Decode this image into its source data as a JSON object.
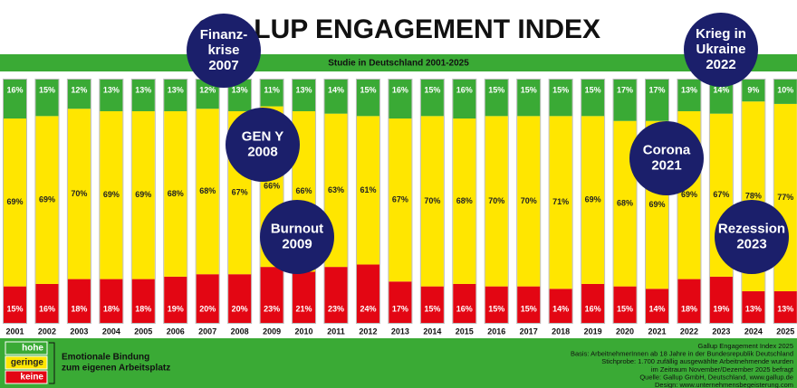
{
  "chart_data": {
    "type": "stacked_bar",
    "title": "GALLUP ENGAGEMENT INDEX",
    "subtitle": "Studie in Deutschland 2001-2025",
    "categories": [
      "2001",
      "2002",
      "2003",
      "2004",
      "2005",
      "2006",
      "2007",
      "2008",
      "2009",
      "2010",
      "2011",
      "2012",
      "2013",
      "2014",
      "2015",
      "2016",
      "2017",
      "2018",
      "2019",
      "2020",
      "2021",
      "2022",
      "2023",
      "2024",
      "2025"
    ],
    "ylim": [
      0,
      100
    ],
    "series": [
      {
        "name": "hohe",
        "color": "#3aaa35",
        "values": [
          16,
          15,
          12,
          13,
          13,
          13,
          12,
          13,
          11,
          13,
          14,
          15,
          16,
          15,
          16,
          15,
          15,
          15,
          15,
          17,
          17,
          13,
          14,
          9,
          10
        ],
        "value_labels": [
          "16%",
          "15%",
          "12%",
          "13%",
          "13%",
          "13%",
          "12%",
          "13%",
          "11%",
          "13%",
          "14%",
          "15%",
          "16%",
          "15%",
          "16%",
          "15%",
          "15%",
          "15%",
          "15%",
          "17%",
          "17%",
          "13%",
          "14%",
          "9%",
          "10%"
        ]
      },
      {
        "name": "geringe",
        "color": "#ffe600",
        "values": [
          69,
          69,
          70,
          69,
          69,
          68,
          68,
          67,
          66,
          66,
          63,
          61,
          67,
          70,
          68,
          70,
          70,
          71,
          69,
          68,
          69,
          69,
          67,
          78,
          77
        ],
        "value_labels": [
          "69%",
          "69%",
          "70%",
          "69%",
          "69%",
          "68%",
          "68%",
          "67%",
          "66%",
          "66%",
          "63%",
          "61%",
          "67%",
          "70%",
          "68%",
          "70%",
          "70%",
          "71%",
          "69%",
          "68%",
          "69%",
          "69%",
          "67%",
          "78%",
          "77%"
        ]
      },
      {
        "name": "keine",
        "color": "#e30613",
        "values": [
          15,
          16,
          18,
          18,
          18,
          19,
          20,
          20,
          23,
          21,
          23,
          24,
          17,
          15,
          16,
          15,
          15,
          14,
          16,
          15,
          14,
          18,
          19,
          13,
          13
        ],
        "value_labels": [
          "15%",
          "16%",
          "18%",
          "18%",
          "18%",
          "19%",
          "20%",
          "20%",
          "23%",
          "21%",
          "23%",
          "24%",
          "17%",
          "15%",
          "16%",
          "15%",
          "15%",
          "14%",
          "16%",
          "15%",
          "14%",
          "18%",
          "19%",
          "13%",
          "13%"
        ]
      }
    ],
    "legend_caption": [
      "Emotionale Bindung",
      "zum eigenen Arbeitsplatz"
    ],
    "annotations": [
      {
        "lines": [
          "Finanz-",
          "krise",
          "2007"
        ]
      },
      {
        "lines": [
          "GEN Y",
          "2008"
        ]
      },
      {
        "lines": [
          "Burnout",
          "2009"
        ]
      },
      {
        "lines": [
          "Corona",
          "2021"
        ]
      },
      {
        "lines": [
          "Krieg in",
          "Ukraine",
          "2022"
        ]
      },
      {
        "lines": [
          "Rezession",
          "2023"
        ]
      }
    ],
    "source_notes": [
      "Gallup Engagement Index 2025",
      "Basis: ArbeitnehmerInnen ab 18 Jahre in der Bundesrepublik Deutschland",
      "Stichprobe: 1.700 zufällig ausgewählte Arbeitnehmende wurden",
      "im Zeitraum November/Dezember 2025 befragt",
      "Quelle: Gallup GmbH, Deutschland, www.gallup.de",
      "Design: www.unternehmensbegeisterung.com"
    ]
  }
}
